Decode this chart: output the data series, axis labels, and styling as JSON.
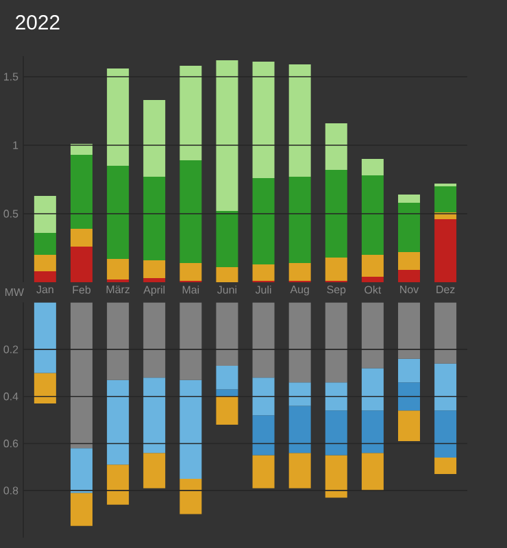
{
  "chart_data": [
    {
      "type": "bar",
      "title": "2022",
      "ylabel": "MW",
      "stacked": true,
      "grid": "y",
      "categories": [
        "Jan",
        "Feb",
        "März",
        "April",
        "Mai",
        "Juni",
        "Juli",
        "Aug",
        "Sep",
        "Okt",
        "Nov",
        "Dez"
      ],
      "series": [
        {
          "color": "#c0201e",
          "values": [
            0.08,
            0.26,
            0.02,
            0.03,
            0.01,
            0,
            0.01,
            0.01,
            0.01,
            0.04,
            0.09,
            0.46
          ]
        },
        {
          "color": "#e0a325",
          "values": [
            0.12,
            0.13,
            0.15,
            0.13,
            0.13,
            0.11,
            0.12,
            0.13,
            0.17,
            0.16,
            0.13,
            0.05
          ]
        },
        {
          "color": "#2e9b2a",
          "values": [
            0.16,
            0.54,
            0.68,
            0.61,
            0.75,
            0.41,
            0.63,
            0.63,
            0.64,
            0.58,
            0.36,
            0.19
          ]
        },
        {
          "color": "#a8de8a",
          "values": [
            0.27,
            0.08,
            0.71,
            0.56,
            0.69,
            1.1,
            0.85,
            0.82,
            0.34,
            0.12,
            0.06,
            0.02
          ]
        }
      ],
      "ylim": [
        0,
        1.65
      ],
      "yticks": [
        0.5,
        1,
        1.5
      ]
    },
    {
      "type": "bar",
      "stacked": true,
      "grid": "y",
      "categories": [
        null,
        null,
        null,
        null,
        null,
        null,
        null,
        null,
        null,
        null,
        null,
        null
      ],
      "series": [
        {
          "color": "#808080",
          "values": [
            0,
            0.62,
            0.33,
            0.32,
            0.33,
            0.27,
            0.32,
            0.34,
            0.34,
            0.28,
            0.24,
            0.26
          ]
        },
        {
          "color": "#6ab4e0",
          "values": [
            0.3,
            0.19,
            0.36,
            0.32,
            0.42,
            0.1,
            0.16,
            0.1,
            0.12,
            0.18,
            0.1,
            0.2
          ]
        },
        {
          "color": "#3d8fc8",
          "values": [
            0,
            0,
            0,
            0,
            0,
            0.03,
            0.17,
            0.2,
            0.19,
            0.18,
            0.12,
            0.2
          ]
        },
        {
          "color": "#e0a325",
          "values": [
            0.13,
            0.14,
            0.17,
            0.15,
            0.15,
            0.12,
            0.14,
            0.15,
            0.18,
            0.16,
            0.13,
            0.07
          ]
        }
      ],
      "ylim": [
        1,
        0
      ],
      "yticks": [
        0.2,
        0.4,
        0.6,
        0.8
      ]
    }
  ]
}
